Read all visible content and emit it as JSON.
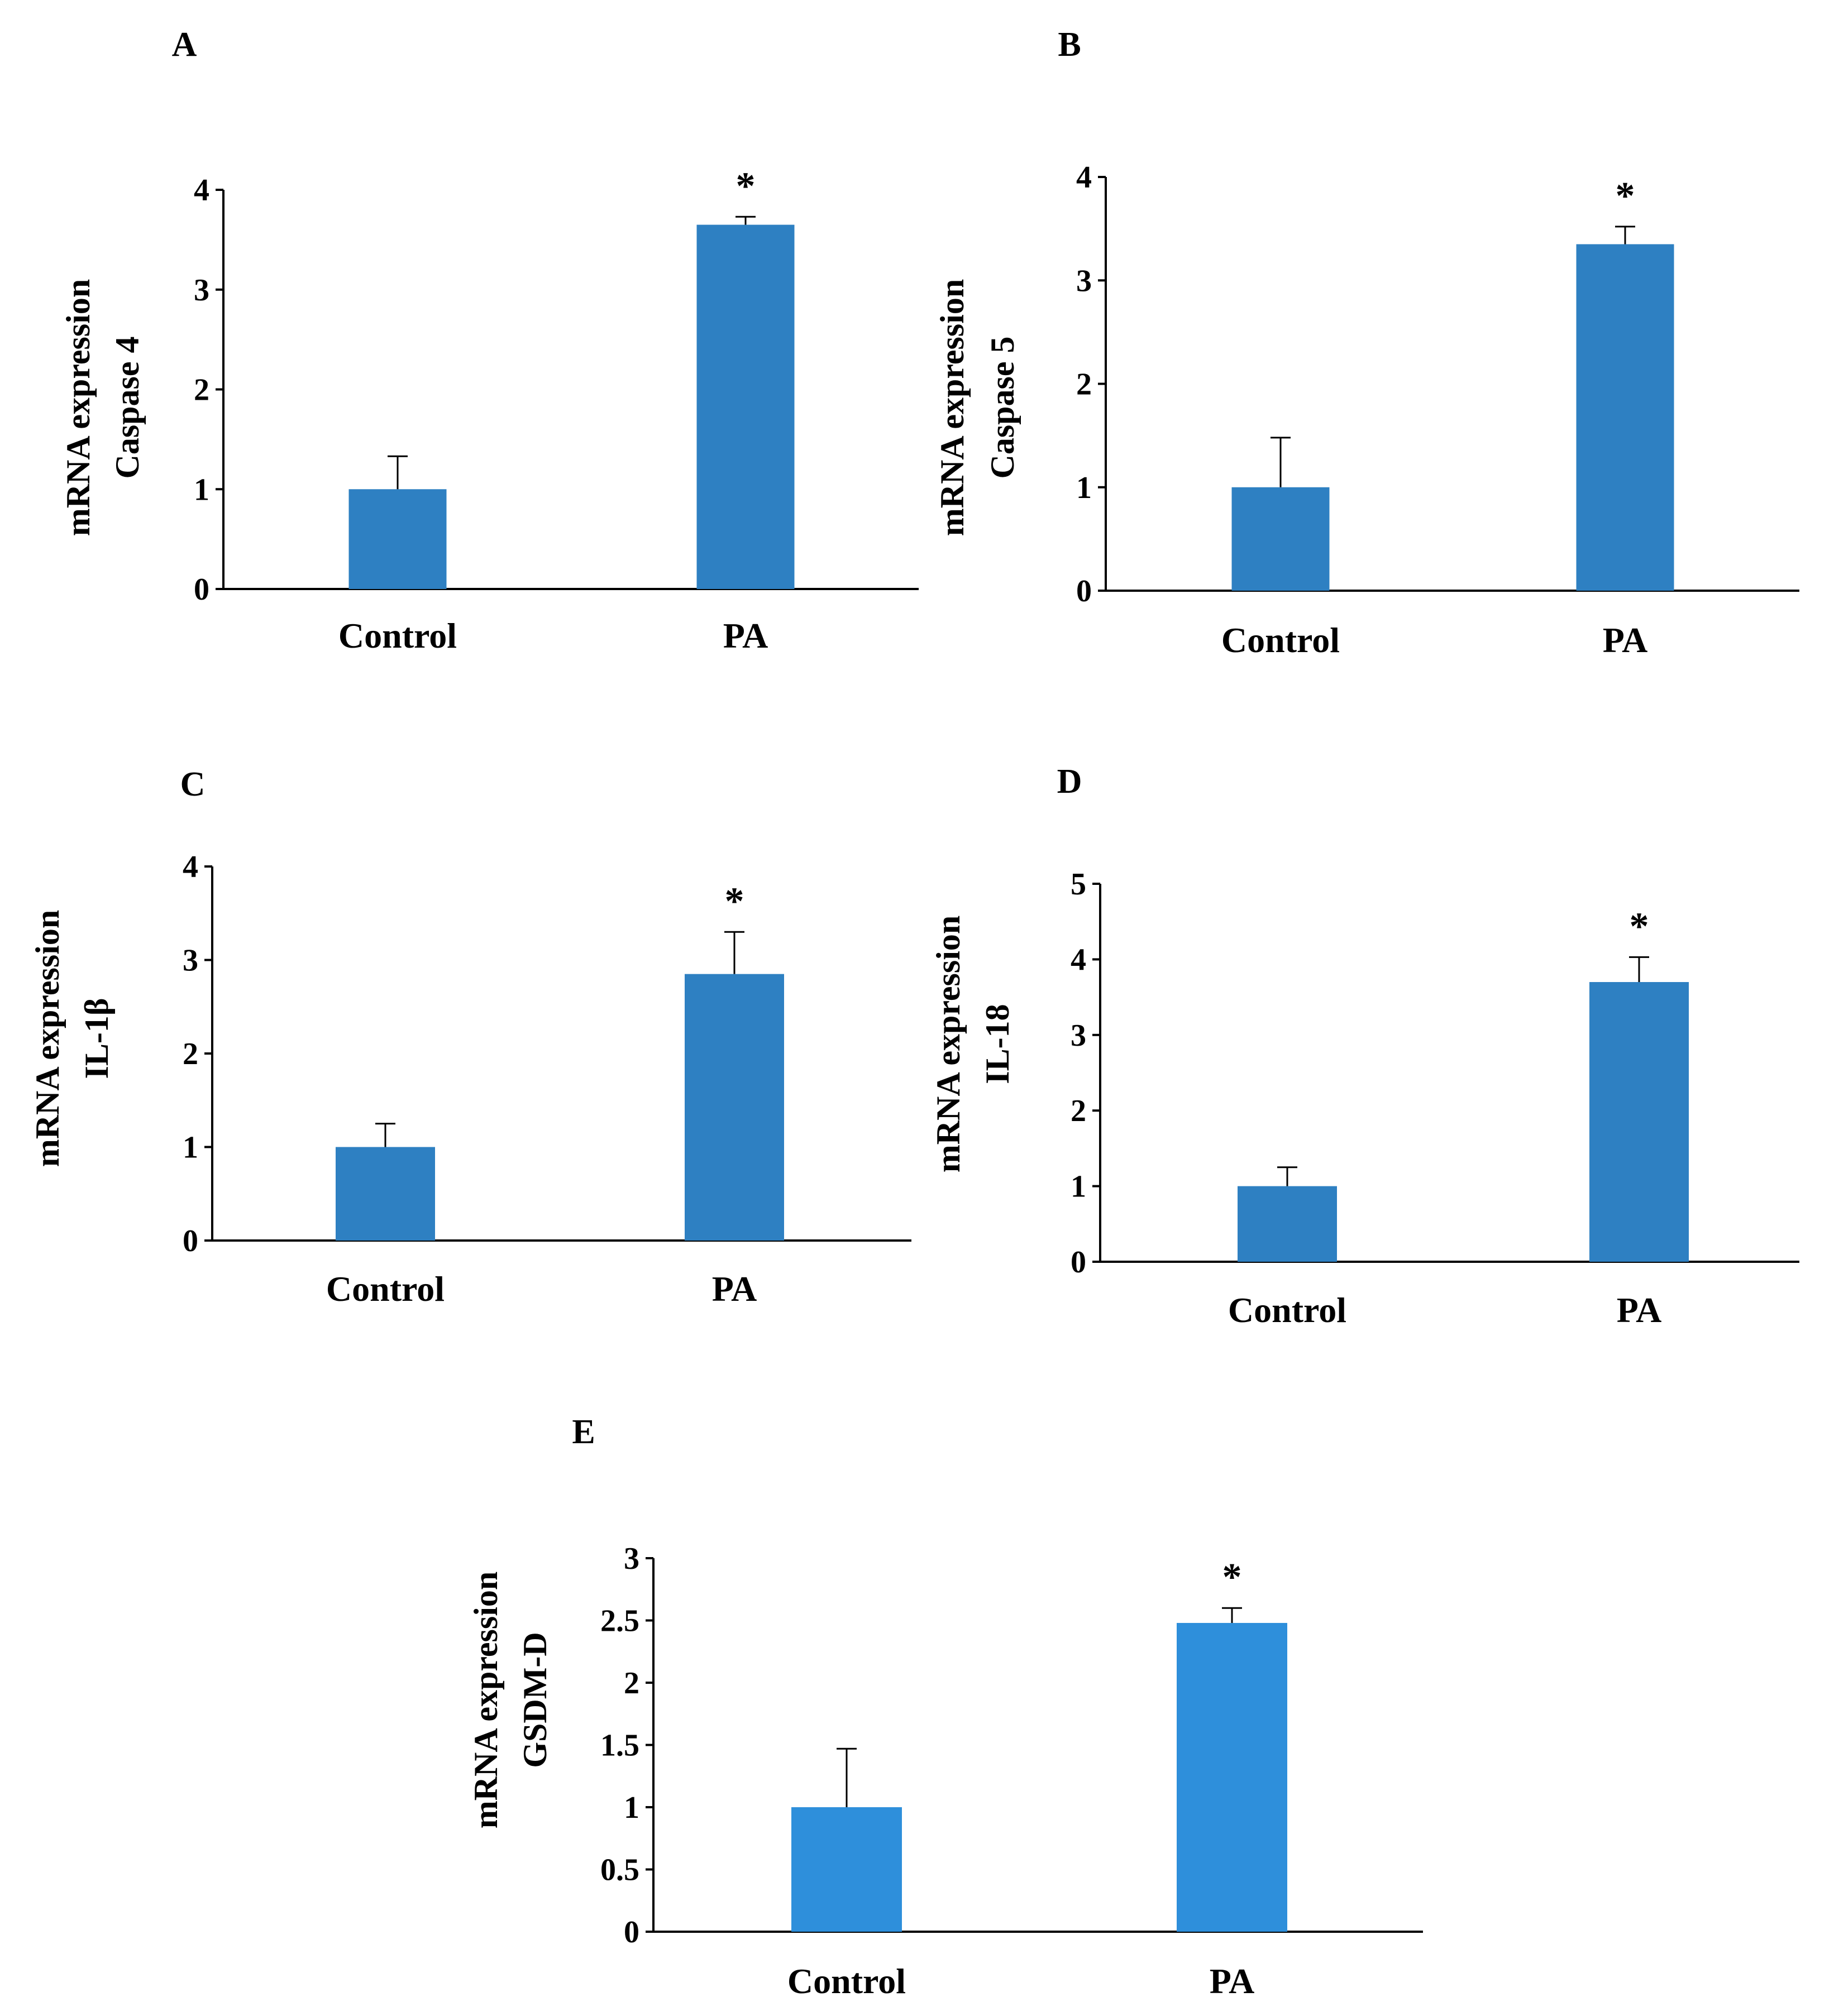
{
  "chart_data": [
    {
      "panel": "A",
      "type": "bar",
      "categories": [
        "Control",
        "PA"
      ],
      "values": [
        1.0,
        3.65
      ],
      "errors": [
        0.33,
        0.08
      ],
      "significance": [
        "",
        "*"
      ],
      "ylabel_lines": [
        "mRNA expression",
        "Caspase 4"
      ],
      "ylim": [
        0,
        4
      ],
      "yticks": [
        "0",
        "1",
        "2",
        "3",
        "4"
      ],
      "color": "#2e80c2"
    },
    {
      "panel": "B",
      "type": "bar",
      "categories": [
        "Control",
        "PA"
      ],
      "values": [
        1.0,
        3.35
      ],
      "errors": [
        0.48,
        0.17
      ],
      "significance": [
        "",
        "*"
      ],
      "ylabel_lines": [
        "mRNA expression",
        "Caspase 5"
      ],
      "ylim": [
        0,
        4
      ],
      "yticks": [
        "0",
        "1",
        "2",
        "3",
        "4"
      ],
      "color": "#2e80c2"
    },
    {
      "panel": "C",
      "type": "bar",
      "categories": [
        "Control",
        "PA"
      ],
      "values": [
        1.0,
        2.85
      ],
      "errors": [
        0.25,
        0.45
      ],
      "significance": [
        "",
        "*"
      ],
      "ylabel_lines": [
        "mRNA expression",
        "IL-1β"
      ],
      "ylim": [
        0,
        4
      ],
      "yticks": [
        "0",
        "1",
        "2",
        "3",
        "4"
      ],
      "color": "#2e80c2"
    },
    {
      "panel": "D",
      "type": "bar",
      "categories": [
        "Control",
        "PA"
      ],
      "values": [
        1.0,
        3.7
      ],
      "errors": [
        0.25,
        0.33
      ],
      "significance": [
        "",
        "*"
      ],
      "ylabel_lines": [
        "mRNA expression",
        "IL-18"
      ],
      "ylim": [
        0,
        5
      ],
      "yticks": [
        "0",
        "1",
        "2",
        "3",
        "4",
        "5"
      ],
      "color": "#2e80c2"
    },
    {
      "panel": "E",
      "type": "bar",
      "categories": [
        "Control",
        "PA"
      ],
      "values": [
        1.0,
        2.48
      ],
      "errors": [
        0.47,
        0.12
      ],
      "significance": [
        "",
        "*"
      ],
      "ylabel_lines": [
        "mRNA expression",
        "GSDM-D"
      ],
      "ylim": [
        0,
        3
      ],
      "yticks": [
        "0",
        "0.5",
        "1",
        "1.5",
        "2",
        "2.5",
        "3"
      ],
      "color": "#2e8fdb"
    }
  ]
}
